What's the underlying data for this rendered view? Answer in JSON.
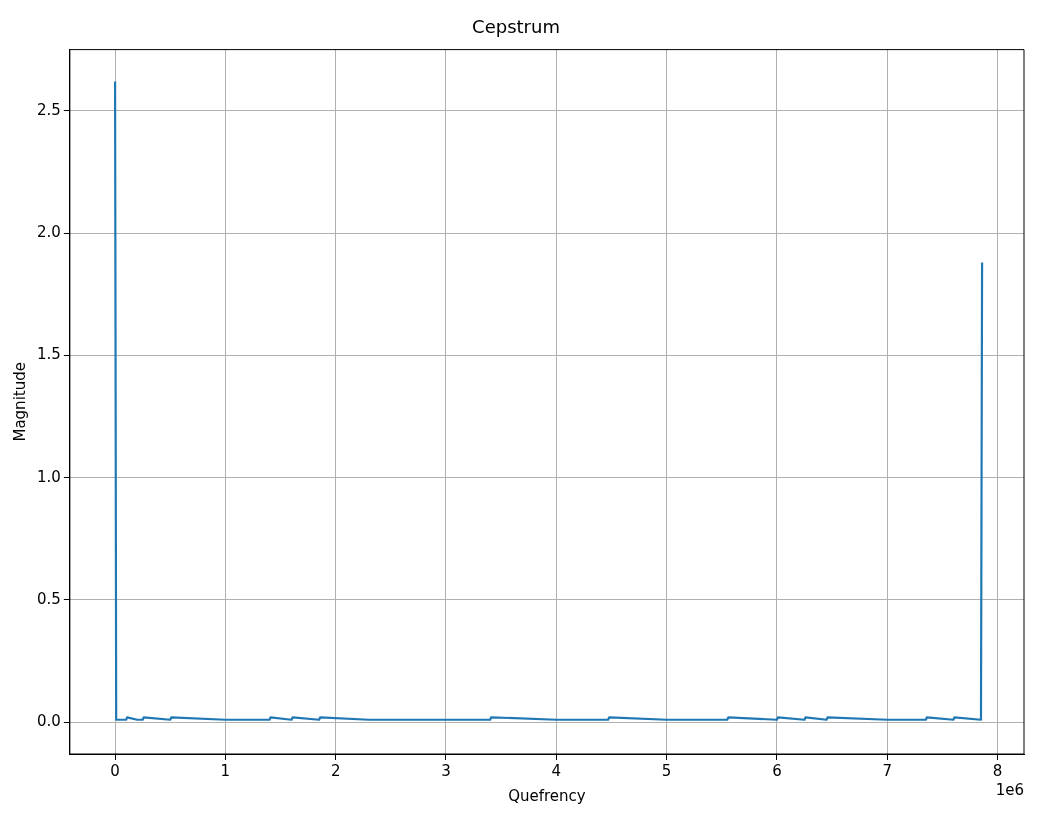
{
  "chart_data": {
    "type": "line",
    "title": "Cepstrum",
    "xlabel": "Quefrency",
    "ylabel": "Magnitude",
    "x": [
      0,
      0.01,
      0.1,
      0.11,
      0.2,
      0.25,
      0.26,
      0.5,
      0.51,
      1,
      1.4,
      1.41,
      1.6,
      1.61,
      1.85,
      1.86,
      2.3,
      3,
      3.4,
      3.41,
      4,
      4.47,
      4.48,
      5,
      5.55,
      5.56,
      6,
      6.01,
      6.25,
      6.26,
      6.45,
      6.46,
      7,
      7.35,
      7.36,
      7.6,
      7.61,
      7.85,
      7.86
    ],
    "values": [
      2.62,
      0.01,
      0.01,
      0.02,
      0.01,
      0.01,
      0.02,
      0.01,
      0.02,
      0.01,
      0.01,
      0.02,
      0.01,
      0.02,
      0.01,
      0.02,
      0.01,
      0.01,
      0.01,
      0.02,
      0.01,
      0.01,
      0.02,
      0.01,
      0.01,
      0.02,
      0.01,
      0.02,
      0.01,
      0.02,
      0.01,
      0.02,
      0.01,
      0.01,
      0.02,
      0.01,
      0.02,
      0.01,
      1.88
    ],
    "color": "#1f77b4",
    "xlim": [
      -0.41,
      8.24
    ],
    "xticks": [
      0,
      1,
      2,
      3,
      4,
      5,
      6,
      7,
      8
    ],
    "ylim": [
      -0.13,
      2.75
    ],
    "yticks": [
      {
        "value": 0,
        "label": "0.0"
      },
      {
        "value": 0.5,
        "label": "0.5"
      },
      {
        "value": 1,
        "label": "1.0"
      },
      {
        "value": 1.5,
        "label": "1.5"
      },
      {
        "value": 2,
        "label": "2.0"
      },
      {
        "value": 2.5,
        "label": "2.5"
      }
    ],
    "grid": true,
    "marker": "none",
    "line_style": "solid",
    "annotations": [
      "1e6"
    ]
  }
}
